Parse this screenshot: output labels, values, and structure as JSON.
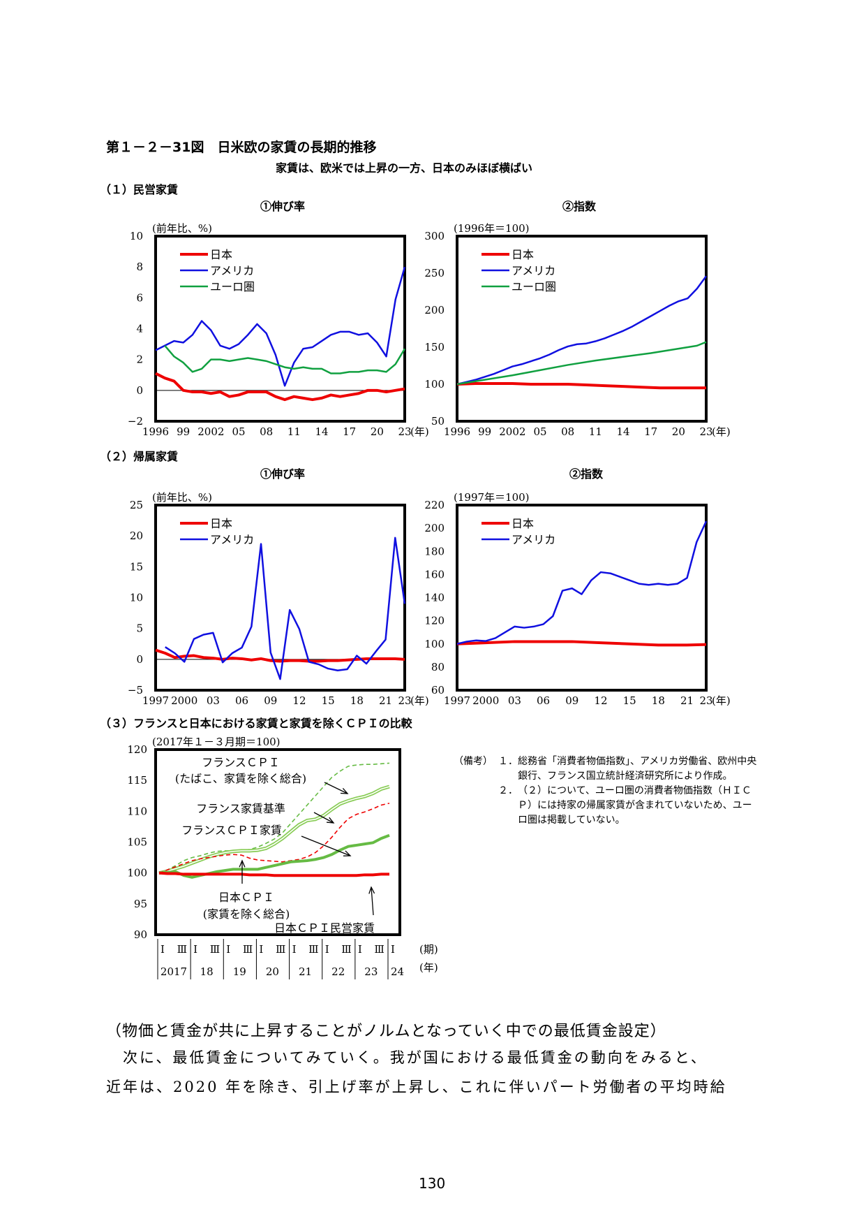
{
  "figure": {
    "title": "第１－２－31図　日米欧の家賃の長期的推移",
    "subtitle": "家賃は、欧米では上昇の一方、日本のみほぼ横ばい"
  },
  "sections": {
    "s1": "（１）民営家賃",
    "s2": "（２）帰属家賃",
    "s3": "（３）フランスと日本における家賃と家賃を除くＣＰＩの比較"
  },
  "colors": {
    "japan": "#ee0000",
    "usa": "#1010e0",
    "euro": "#10a040",
    "france": "#66bb44",
    "france_rent": "#88cc55"
  },
  "chart_data": [
    {
      "id": "c1",
      "type": "line",
      "title": "①伸び率",
      "ylabel": "(前年比、%)",
      "xunit": "(年)",
      "ylim": [
        -2,
        10
      ],
      "yticks": [
        "10",
        "8",
        "6",
        "4",
        "2",
        "0",
        "−2"
      ],
      "ytick_values": [
        10,
        8,
        6,
        4,
        2,
        0,
        -2
      ],
      "xlim": [
        1996,
        2023
      ],
      "xtick_labels": [
        "1996",
        "99",
        "2002",
        "05",
        "08",
        "11",
        "14",
        "17",
        "20",
        "23"
      ],
      "xtick_values": [
        1996,
        1999,
        2002,
        2005,
        2008,
        2011,
        2014,
        2017,
        2020,
        2023
      ],
      "zero_line": true,
      "legend": [
        "日本",
        "アメリカ",
        "ユーロ圏"
      ],
      "series": [
        {
          "name": "日本",
          "color": "#ee0000",
          "width": 4,
          "x": [
            1996,
            1997,
            1998,
            1999,
            2000,
            2001,
            2002,
            2003,
            2004,
            2005,
            2006,
            2007,
            2008,
            2009,
            2010,
            2011,
            2012,
            2013,
            2014,
            2015,
            2016,
            2017,
            2018,
            2019,
            2020,
            2021,
            2022,
            2023
          ],
          "values": [
            1.1,
            0.8,
            0.6,
            0.0,
            -0.1,
            -0.1,
            -0.2,
            -0.1,
            -0.4,
            -0.3,
            -0.1,
            -0.1,
            -0.1,
            -0.4,
            -0.6,
            -0.4,
            -0.5,
            -0.6,
            -0.5,
            -0.3,
            -0.4,
            -0.3,
            -0.2,
            0.0,
            0.0,
            -0.1,
            0.0,
            0.1
          ]
        },
        {
          "name": "アメリカ",
          "color": "#1010e0",
          "width": 2.5,
          "x": [
            1996,
            1997,
            1998,
            1999,
            2000,
            2001,
            2002,
            2003,
            2004,
            2005,
            2006,
            2007,
            2008,
            2009,
            2010,
            2011,
            2012,
            2013,
            2014,
            2015,
            2016,
            2017,
            2018,
            2019,
            2020,
            2021,
            2022,
            2023
          ],
          "values": [
            2.6,
            2.9,
            3.2,
            3.1,
            3.6,
            4.5,
            3.9,
            2.9,
            2.7,
            3.0,
            3.6,
            4.3,
            3.7,
            2.3,
            0.3,
            1.8,
            2.7,
            2.8,
            3.2,
            3.6,
            3.8,
            3.8,
            3.6,
            3.7,
            3.1,
            2.2,
            5.9,
            8.0
          ]
        },
        {
          "name": "ユーロ圏",
          "color": "#10a040",
          "width": 2.5,
          "x": [
            1997,
            1998,
            1999,
            2000,
            2001,
            2002,
            2003,
            2004,
            2005,
            2006,
            2007,
            2008,
            2009,
            2010,
            2011,
            2012,
            2013,
            2014,
            2015,
            2016,
            2017,
            2018,
            2019,
            2020,
            2021,
            2022,
            2023
          ],
          "values": [
            2.9,
            2.2,
            1.8,
            1.2,
            1.4,
            2.0,
            2.0,
            1.9,
            2.0,
            2.1,
            2.0,
            1.9,
            1.7,
            1.5,
            1.4,
            1.5,
            1.4,
            1.4,
            1.1,
            1.1,
            1.2,
            1.2,
            1.3,
            1.3,
            1.2,
            1.7,
            2.7
          ]
        }
      ]
    },
    {
      "id": "c2",
      "type": "line",
      "title": "②指数",
      "ylabel": "(1996年＝100)",
      "xunit": "(年)",
      "ylim": [
        50,
        300
      ],
      "yticks": [
        "300",
        "250",
        "200",
        "150",
        "100",
        "50"
      ],
      "ytick_values": [
        300,
        250,
        200,
        150,
        100,
        50
      ],
      "xlim": [
        1996,
        2023
      ],
      "xtick_labels": [
        "1996",
        "99",
        "2002",
        "05",
        "08",
        "11",
        "14",
        "17",
        "20",
        "23"
      ],
      "xtick_values": [
        1996,
        1999,
        2002,
        2005,
        2008,
        2011,
        2014,
        2017,
        2020,
        2023
      ],
      "legend": [
        "日本",
        "アメリカ",
        "ユーロ圏"
      ],
      "series": [
        {
          "name": "日本",
          "color": "#ee0000",
          "width": 4,
          "x": [
            1996,
            1998,
            2000,
            2002,
            2004,
            2006,
            2008,
            2010,
            2012,
            2014,
            2016,
            2018,
            2020,
            2022,
            2023
          ],
          "values": [
            100,
            101,
            101,
            101,
            100,
            100,
            100,
            99,
            98,
            97,
            96,
            95,
            95,
            95,
            95
          ]
        },
        {
          "name": "アメリカ",
          "color": "#1010e0",
          "width": 2.5,
          "x": [
            1996,
            1997,
            1998,
            1999,
            2000,
            2001,
            2002,
            2003,
            2004,
            2005,
            2006,
            2007,
            2008,
            2009,
            2010,
            2011,
            2012,
            2013,
            2014,
            2015,
            2016,
            2017,
            2018,
            2019,
            2020,
            2021,
            2022,
            2023
          ],
          "values": [
            100,
            103,
            106,
            110,
            114,
            119,
            124,
            127,
            131,
            135,
            140,
            146,
            151,
            154,
            155,
            158,
            162,
            167,
            172,
            178,
            185,
            192,
            199,
            206,
            212,
            216,
            229,
            246
          ]
        },
        {
          "name": "ユーロ圏",
          "color": "#10a040",
          "width": 2.5,
          "x": [
            1996,
            1999,
            2002,
            2005,
            2008,
            2011,
            2014,
            2017,
            2020,
            2022,
            2023
          ],
          "values": [
            100,
            106,
            112,
            119,
            126,
            132,
            137,
            142,
            148,
            152,
            157
          ]
        }
      ]
    },
    {
      "id": "c3",
      "type": "line",
      "title": "①伸び率",
      "ylabel": "(前年比、%)",
      "xunit": "(年)",
      "ylim": [
        -5,
        25
      ],
      "yticks": [
        "25",
        "20",
        "15",
        "10",
        "5",
        "0",
        "−5"
      ],
      "ytick_values": [
        25,
        20,
        15,
        10,
        5,
        0,
        -5
      ],
      "xlim": [
        1997,
        2023
      ],
      "xtick_labels": [
        "1997",
        "2000",
        "03",
        "06",
        "09",
        "12",
        "15",
        "18",
        "21",
        "23"
      ],
      "xtick_values": [
        1997,
        2000,
        2003,
        2006,
        2009,
        2012,
        2015,
        2018,
        2021,
        2023
      ],
      "zero_line": true,
      "legend": [
        "日本",
        "アメリカ"
      ],
      "series": [
        {
          "name": "日本",
          "color": "#ee0000",
          "width": 4,
          "x": [
            1997,
            1998,
            1999,
            2000,
            2001,
            2002,
            2003,
            2004,
            2005,
            2006,
            2007,
            2008,
            2009,
            2010,
            2011,
            2012,
            2013,
            2014,
            2015,
            2016,
            2017,
            2018,
            2019,
            2020,
            2021,
            2022,
            2023
          ],
          "values": [
            1.5,
            1.0,
            0.3,
            0.5,
            0.6,
            0.3,
            0.2,
            0.0,
            0.2,
            0.1,
            -0.1,
            0.1,
            -0.2,
            -0.3,
            -0.2,
            -0.2,
            -0.3,
            -0.3,
            -0.2,
            -0.2,
            -0.1,
            0.0,
            0.1,
            0.1,
            0.1,
            0.1,
            0.0
          ]
        },
        {
          "name": "アメリカ",
          "color": "#1010e0",
          "width": 2.5,
          "x": [
            1998,
            1999,
            2000,
            2001,
            2002,
            2003,
            2004,
            2005,
            2006,
            2007,
            2008,
            2009,
            2010,
            2011,
            2012,
            2013,
            2014,
            2015,
            2016,
            2017,
            2018,
            2019,
            2020,
            2021,
            2022,
            2023
          ],
          "values": [
            2.0,
            1.0,
            -0.4,
            3.3,
            4.0,
            4.3,
            -0.5,
            1.0,
            1.9,
            5.3,
            18.7,
            1.1,
            -3.2,
            8.0,
            4.9,
            -0.4,
            -0.8,
            -1.5,
            -1.8,
            -1.6,
            0.6,
            -0.7,
            1.3,
            3.2,
            19.7,
            9.0
          ]
        }
      ]
    },
    {
      "id": "c4",
      "type": "line",
      "title": "②指数",
      "ylabel": "(1997年＝100)",
      "xunit": "(年)",
      "ylim": [
        60,
        220
      ],
      "yticks": [
        "220",
        "200",
        "180",
        "160",
        "140",
        "120",
        "100",
        "80",
        "60"
      ],
      "ytick_values": [
        220,
        200,
        180,
        160,
        140,
        120,
        100,
        80,
        60
      ],
      "xlim": [
        1997,
        2023
      ],
      "xtick_labels": [
        "1997",
        "2000",
        "03",
        "06",
        "09",
        "12",
        "15",
        "18",
        "21",
        "23"
      ],
      "xtick_values": [
        1997,
        2000,
        2003,
        2006,
        2009,
        2012,
        2015,
        2018,
        2021,
        2023
      ],
      "legend": [
        "日本",
        "アメリカ"
      ],
      "series": [
        {
          "name": "日本",
          "color": "#ee0000",
          "width": 4,
          "x": [
            1997,
            2000,
            2003,
            2006,
            2009,
            2012,
            2015,
            2018,
            2021,
            2023
          ],
          "values": [
            100,
            101,
            102,
            102,
            102,
            101,
            100,
            99,
            99,
            99.5
          ]
        },
        {
          "name": "アメリカ",
          "color": "#1010e0",
          "width": 2.5,
          "x": [
            1997,
            1998,
            1999,
            2000,
            2001,
            2002,
            2003,
            2004,
            2005,
            2006,
            2007,
            2008,
            2009,
            2010,
            2011,
            2012,
            2013,
            2014,
            2015,
            2016,
            2017,
            2018,
            2019,
            2020,
            2021,
            2022,
            2023
          ],
          "values": [
            100,
            102,
            103,
            102.5,
            105,
            110,
            115,
            114,
            115,
            117,
            124,
            146,
            148,
            143,
            155,
            162,
            161,
            158,
            155,
            152,
            151,
            152,
            151,
            152,
            157,
            188,
            206
          ]
        }
      ]
    },
    {
      "id": "c5",
      "type": "line",
      "ylabel": "(2017年１－３月期＝100)",
      "ylim": [
        90,
        120
      ],
      "yticks": [
        "120",
        "115",
        "110",
        "105",
        "100",
        "95",
        "90"
      ],
      "ytick_values": [
        120,
        115,
        110,
        105,
        100,
        95,
        90
      ],
      "quarters": 29,
      "period_labels": [
        "Ⅰ",
        "Ⅲ",
        "Ⅰ",
        "Ⅲ",
        "Ⅰ",
        "Ⅲ",
        "Ⅰ",
        "Ⅲ",
        "Ⅰ",
        "Ⅲ",
        "Ⅰ",
        "Ⅲ",
        "Ⅰ",
        "Ⅲ",
        "Ⅰ"
      ],
      "year_labels": [
        "2017",
        "18",
        "19",
        "20",
        "21",
        "22",
        "23",
        "24"
      ],
      "period_unit": "(期)",
      "year_unit": "(年)",
      "annotations": [
        "フランスＣＰＩ",
        "(たばこ、家賃を除く総合)",
        "フランス家賃基準",
        "フランスＣＰＩ家賃",
        "日本ＣＰＩ",
        "(家賃を除く総合)",
        "日本ＣＰＩ民営家賃"
      ],
      "series": [
        {
          "name": "フランスＣＰＩ(たばこ、家賃を除く総合)",
          "color": "#66bb44",
          "style": "dashed",
          "values": [
            100,
            100.5,
            101.2,
            102,
            102.5,
            102.8,
            103.2,
            103.5,
            103.6,
            103.6,
            103.7,
            103.8,
            104.2,
            104.8,
            105.5,
            106.5,
            108,
            109.5,
            111,
            112.5,
            114,
            115.5,
            116.5,
            117.3,
            117.5,
            117.6,
            117.6,
            117.7,
            117.8
          ]
        },
        {
          "name": "フランス家賃基準",
          "color": "#88cc55",
          "style": "double",
          "values": [
            100,
            100.3,
            100.7,
            101.1,
            101.6,
            102.1,
            102.6,
            103.0,
            103.3,
            103.5,
            103.6,
            103.6,
            103.7,
            104.0,
            104.7,
            105.6,
            106.7,
            107.8,
            108.5,
            108.7,
            109.3,
            110.3,
            111.2,
            111.7,
            112.1,
            112.4,
            112.9,
            113.6,
            114.0
          ]
        },
        {
          "name": "フランスＣＰＩ家賃",
          "color": "#ee0000",
          "style": "dashed",
          "values": [
            100,
            100.5,
            101.0,
            101.5,
            102.0,
            102.3,
            102.5,
            102.7,
            102.9,
            103.0,
            102.9,
            102.4,
            102.1,
            102.0,
            101.9,
            101.8,
            102.0,
            102.2,
            102.6,
            103.3,
            104.4,
            105.8,
            107.4,
            108.8,
            109.5,
            109.9,
            110.4,
            111.0,
            111.3
          ]
        },
        {
          "name": "日本ＣＰＩ(家賃を除く総合)",
          "color": "#66bb44",
          "style": "solid",
          "width": 4,
          "values": [
            100,
            100.1,
            100.2,
            99.6,
            99.3,
            99.6,
            99.9,
            100.2,
            100.4,
            100.6,
            100.6,
            100.6,
            100.6,
            100.9,
            101.2,
            101.5,
            101.8,
            101.9,
            102.0,
            102.2,
            102.5,
            103.0,
            103.7,
            104.3,
            104.5,
            104.7,
            104.9,
            105.6,
            106.1
          ]
        },
        {
          "name": "日本ＣＰＩ民営家賃",
          "color": "#ee0000",
          "style": "solid",
          "width": 4,
          "values": [
            100,
            99.9,
            99.9,
            99.8,
            99.8,
            99.8,
            99.8,
            99.8,
            99.8,
            99.8,
            99.8,
            99.7,
            99.7,
            99.7,
            99.6,
            99.6,
            99.6,
            99.6,
            99.6,
            99.6,
            99.6,
            99.6,
            99.6,
            99.6,
            99.6,
            99.7,
            99.7,
            99.8,
            99.8
          ]
        }
      ]
    }
  ],
  "notes": {
    "label": "（備考）",
    "items": [
      {
        "num": "１．",
        "text": "総務省「消費者物価指数」、アメリカ労働省、欧州中央銀行、フランス国立統計経済研究所により作成。"
      },
      {
        "num": "２．",
        "text": "（２）について、ユーロ圏の消費者物価指数（ＨＩＣＰ）には持家の帰属家賃が含まれていないため、ユーロ圏は掲載していない。"
      }
    ]
  },
  "body": {
    "heading": "（物価と賃金が共に上昇することがノルムとなっていく中での最低賃金設定）",
    "line1": "　次に、最低賃金についてみていく。我が国における最低賃金の動向をみると、",
    "line2": "近年は、2020 年を除き、引上げ率が上昇し、これに伴いパート労働者の平均時給"
  },
  "page_number": "130"
}
